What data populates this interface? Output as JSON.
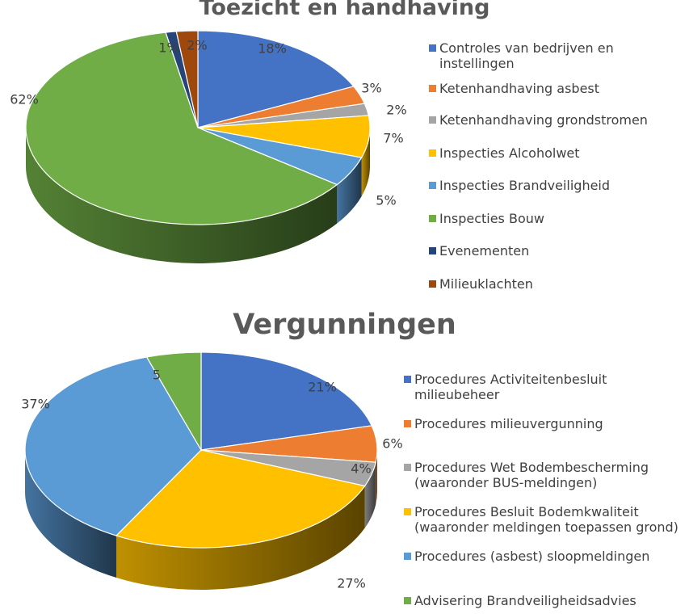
{
  "chart_data": [
    {
      "type": "pie",
      "title": "Toezicht en handhaving",
      "categories": [
        "Controles van bedrijven en instellingen",
        "Ketenhandhaving asbest",
        "Ketenhandhaving grondstromen",
        "Inspecties Alcoholwet",
        "Inspecties Brandveiligheid",
        "Inspecties Bouw",
        "Evenementen",
        "Milieuklachten"
      ],
      "values": [
        18,
        3,
        2,
        7,
        5,
        62,
        1,
        2
      ],
      "data_labels": [
        "18%",
        "3%",
        "2%",
        "7%",
        "5%",
        "62%",
        "1%",
        "2%"
      ],
      "colors": [
        "#4472C4",
        "#ED7D31",
        "#A5A5A5",
        "#FFC000",
        "#5B9BD5",
        "#70AD47",
        "#264478",
        "#9E480E"
      ],
      "legend_position": "right"
    },
    {
      "type": "pie",
      "title": "Vergunningen",
      "categories": [
        "Procedures Activiteitenbesluit milieubeheer",
        "Procedures milieuvergunning",
        "Procedures Wet Bodembescherming (waaronder BUS-meldingen)",
        "Procedures Besluit Bodemkwaliteit (waaronder meldingen toepassen grond)",
        "Procedures (asbest) sloopmeldingen",
        "Advisering Brandveiligheidsadvies"
      ],
      "values": [
        21,
        6,
        4,
        27,
        37,
        5
      ],
      "data_labels": [
        "21%",
        "6%",
        "4%",
        "27%",
        "37%",
        "5"
      ],
      "colors": [
        "#4472C4",
        "#ED7D31",
        "#A5A5A5",
        "#FFC000",
        "#5B9BD5",
        "#70AD47"
      ],
      "legend_position": "right"
    }
  ]
}
